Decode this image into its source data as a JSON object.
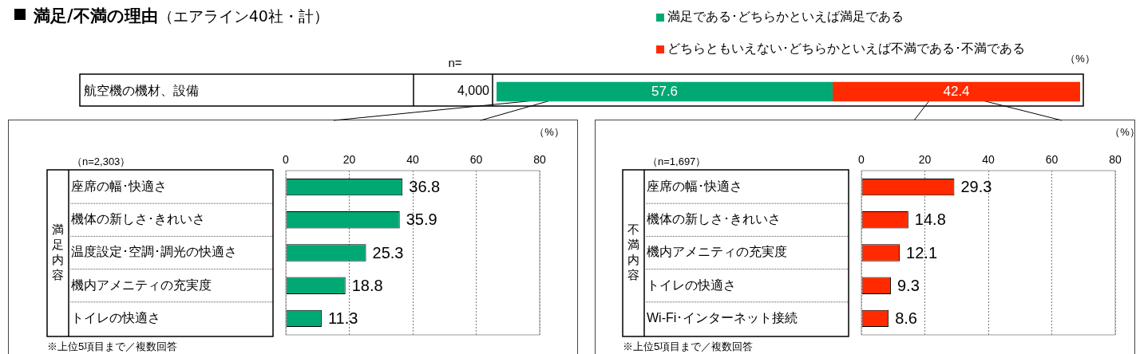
{
  "chart_data": [
    {
      "type": "bar",
      "title": "満足/不満の理由",
      "subtitle": "（エアライン40社・計）",
      "orientation": "horizontal",
      "stacked": true,
      "categories": [
        "航空機の機材、設備"
      ],
      "series": [
        {
          "name": "満足である･どちらかといえば満足である",
          "color": "#00a874",
          "values": [
            57.6
          ]
        },
        {
          "name": "どちらともいえない･どちらかといえば不満である･不満である",
          "color": "#ff2a00",
          "values": [
            42.4
          ]
        }
      ],
      "data_labels": true,
      "legend": "top",
      "annotations": [
        "n=",
        "4,000",
        "（%）"
      ]
    },
    {
      "type": "bar",
      "orientation": "horizontal",
      "ylabel": "満足内容",
      "categories": [
        "座席の幅･快適さ",
        "機体の新しさ･きれいさ",
        "温度設定･空調･調光の快適さ",
        "機内アメニティの充実度",
        "トイレの快適さ"
      ],
      "values": [
        36.8,
        35.9,
        25.3,
        18.8,
        11.3
      ],
      "color": "#00a874",
      "xlim": [
        0,
        80
      ],
      "xticks": [
        0,
        20,
        40,
        60,
        80
      ],
      "grid": "x",
      "data_labels": true,
      "annotations": [
        "（n=2,303）",
        "（%）",
        "※上位5項目まで／複数回答"
      ]
    },
    {
      "type": "bar",
      "orientation": "horizontal",
      "ylabel": "不満内容",
      "categories": [
        "座席の幅･快適さ",
        "機体の新しさ･きれいさ",
        "機内アメニティの充実度",
        "トイレの快適さ",
        "Wi-Fi･インターネット接続"
      ],
      "values": [
        29.3,
        14.8,
        12.1,
        9.3,
        8.6
      ],
      "color": "#ff2a00",
      "xlim": [
        0,
        80
      ],
      "xticks": [
        0,
        20,
        40,
        60,
        80
      ],
      "grid": "x",
      "data_labels": true,
      "annotations": [
        "（n=1,697）",
        "（%）",
        "※上位5項目まで／複数回答"
      ]
    }
  ]
}
